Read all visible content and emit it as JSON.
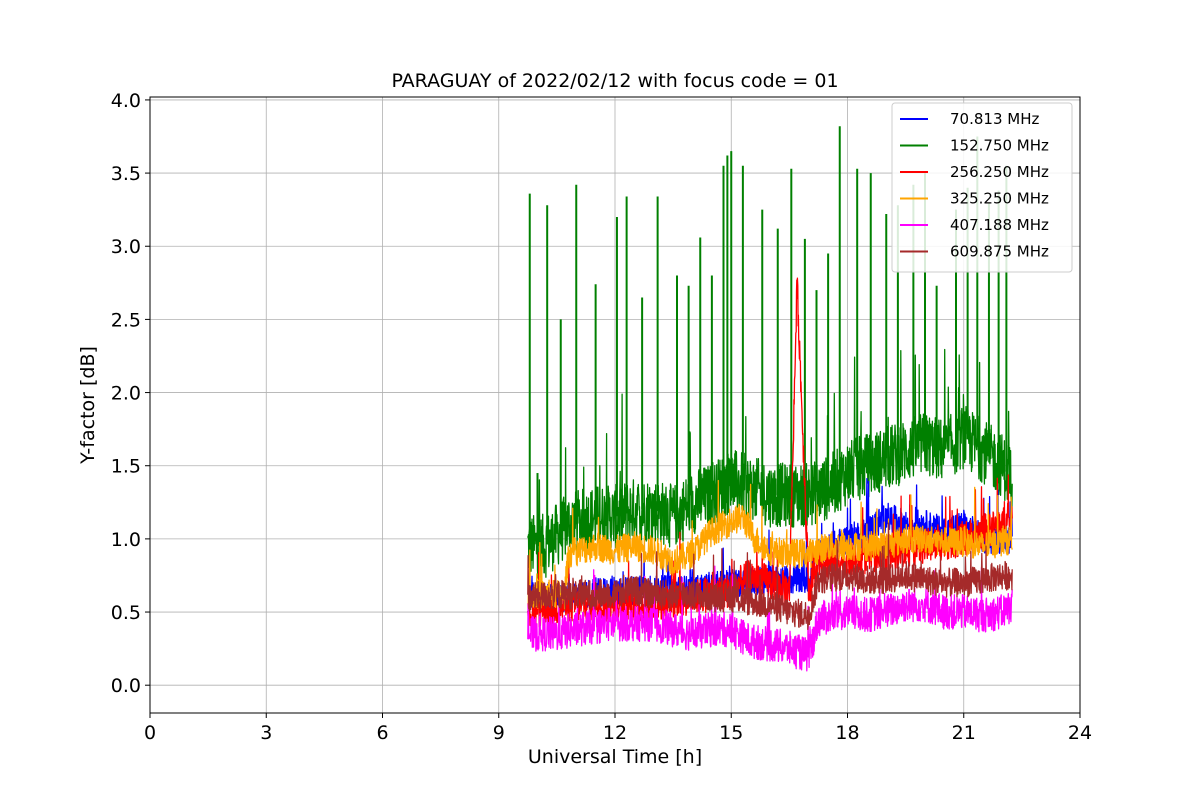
{
  "chart_data": {
    "type": "line",
    "title": "PARAGUAY of 2022/02/12 with focus code = 01",
    "xlabel": "Universal Time [h]",
    "ylabel": "Y-factor [dB]",
    "xlim": [
      0,
      24
    ],
    "ylim": [
      -0.19,
      4.02
    ],
    "xticks": [
      0,
      3,
      6,
      9,
      12,
      15,
      18,
      21,
      24
    ],
    "xtick_labels": [
      "0",
      "3",
      "6",
      "9",
      "12",
      "15",
      "18",
      "21",
      "24"
    ],
    "yticks": [
      0.0,
      0.5,
      1.0,
      1.5,
      2.0,
      2.5,
      3.0,
      3.5,
      4.0
    ],
    "ytick_labels": [
      "0.0",
      "0.5",
      "1.0",
      "1.5",
      "2.0",
      "2.5",
      "3.0",
      "3.5",
      "4.0"
    ],
    "grid": true,
    "legend_position": "top-right",
    "data_range_x": [
      9.75,
      22.25
    ],
    "series": [
      {
        "name": " 70.813 MHz",
        "color": "#0000ff",
        "x": [
          9.75,
          11,
          12,
          13,
          14,
          15,
          16,
          17,
          17.25,
          18,
          18.5,
          19,
          19.5,
          20,
          20.5,
          21,
          21.5,
          22,
          22.25
        ],
        "y": [
          0.6,
          0.6,
          0.65,
          0.65,
          0.65,
          0.7,
          0.72,
          0.72,
          0.9,
          1.0,
          1.05,
          1.15,
          1.1,
          1.1,
          1.05,
          1.1,
          1.0,
          1.0,
          1.0
        ]
      },
      {
        "name": "152.750 MHz",
        "color": "#008000",
        "x": [
          9.75,
          10.2,
          10.8,
          11.5,
          12,
          12.5,
          13,
          13.5,
          14,
          14.5,
          15,
          15.5,
          16,
          16.5,
          17,
          17.5,
          18,
          18.5,
          19,
          19.5,
          20,
          20.5,
          21,
          21.5,
          22,
          22.25
        ],
        "y": [
          0.95,
          0.95,
          1.1,
          1.15,
          1.15,
          1.2,
          1.2,
          1.15,
          1.25,
          1.3,
          1.4,
          1.35,
          1.3,
          1.3,
          1.3,
          1.35,
          1.45,
          1.5,
          1.55,
          1.6,
          1.65,
          1.6,
          1.7,
          1.6,
          1.5,
          1.4
        ],
        "peaks": [
          [
            9.8,
            3.36
          ],
          [
            10.0,
            1.45
          ],
          [
            10.25,
            3.28
          ],
          [
            10.6,
            2.5
          ],
          [
            11.0,
            3.42
          ],
          [
            11.5,
            2.74
          ],
          [
            12.05,
            3.2
          ],
          [
            12.3,
            3.34
          ],
          [
            12.7,
            2.65
          ],
          [
            13.1,
            3.34
          ],
          [
            13.6,
            2.8
          ],
          [
            13.9,
            2.73
          ],
          [
            14.2,
            3.06
          ],
          [
            14.5,
            2.8
          ],
          [
            14.8,
            3.55
          ],
          [
            14.9,
            3.62
          ],
          [
            15.0,
            3.65
          ],
          [
            15.3,
            3.55
          ],
          [
            15.8,
            3.25
          ],
          [
            16.2,
            3.12
          ],
          [
            16.55,
            3.53
          ],
          [
            16.9,
            3.05
          ],
          [
            17.2,
            2.7
          ],
          [
            17.5,
            2.95
          ],
          [
            17.8,
            3.82
          ],
          [
            18.25,
            3.53
          ],
          [
            18.6,
            3.5
          ],
          [
            19.0,
            3.22
          ],
          [
            19.3,
            3.28
          ],
          [
            19.7,
            3.42
          ],
          [
            20.0,
            3.5
          ],
          [
            20.3,
            2.73
          ],
          [
            20.8,
            3.25
          ],
          [
            21.1,
            3.4
          ],
          [
            21.35,
            3.75
          ],
          [
            21.65,
            3.3
          ],
          [
            21.9,
            3.38
          ],
          [
            22.1,
            3.55
          ]
        ]
      },
      {
        "name": "256.250 MHz",
        "color": "#ff0000",
        "x": [
          9.75,
          11,
          12,
          13,
          14,
          15,
          15.5,
          16,
          16.5,
          16.7,
          17,
          17.25,
          18,
          19,
          20,
          21,
          21.5,
          22,
          22.25
        ],
        "y": [
          0.5,
          0.55,
          0.55,
          0.55,
          0.6,
          0.65,
          0.75,
          0.7,
          0.65,
          2.75,
          0.65,
          0.85,
          0.85,
          0.9,
          0.95,
          1.0,
          1.05,
          1.1,
          1.1
        ]
      },
      {
        "name": "325.250 MHz",
        "color": "#ffa500",
        "x": [
          9.75,
          10.7,
          10.8,
          11.5,
          12,
          12.5,
          13,
          13.5,
          14,
          14.5,
          15,
          15.3,
          15.6,
          16,
          16.5,
          17,
          17.5,
          18,
          18.5,
          19,
          19.5,
          20,
          20.5,
          21,
          21.5,
          22,
          22.25
        ],
        "y": [
          0.62,
          0.62,
          0.9,
          0.95,
          0.92,
          0.95,
          0.92,
          0.85,
          0.9,
          1.05,
          1.12,
          1.15,
          1.0,
          0.92,
          0.9,
          0.9,
          0.95,
          0.95,
          0.95,
          0.95,
          1.0,
          1.0,
          0.98,
          0.98,
          0.95,
          0.98,
          1.0
        ]
      },
      {
        "name": "407.188 MHz",
        "color": "#ff00ff",
        "x": [
          9.75,
          10.5,
          11,
          11.5,
          12,
          12.5,
          13,
          13.5,
          14,
          14.5,
          15,
          15.5,
          16,
          16.5,
          17,
          17.25,
          18,
          18.5,
          19,
          19.5,
          20,
          20.5,
          21,
          21.5,
          22,
          22.25
        ],
        "y": [
          0.35,
          0.35,
          0.38,
          0.4,
          0.42,
          0.42,
          0.42,
          0.38,
          0.35,
          0.38,
          0.38,
          0.3,
          0.28,
          0.25,
          0.2,
          0.45,
          0.5,
          0.48,
          0.5,
          0.55,
          0.55,
          0.5,
          0.5,
          0.48,
          0.5,
          0.55
        ]
      },
      {
        "name": "609.875 MHz",
        "color": "#a52a2a",
        "x": [
          9.75,
          10.5,
          11,
          11.5,
          12,
          12.5,
          13,
          13.5,
          14,
          14.5,
          15,
          15.5,
          16,
          16.5,
          17,
          17.25,
          18,
          18.5,
          19,
          19.5,
          20,
          20.5,
          21,
          21.5,
          22,
          22.25
        ],
        "y": [
          0.6,
          0.62,
          0.62,
          0.62,
          0.63,
          0.65,
          0.62,
          0.62,
          0.62,
          0.6,
          0.6,
          0.57,
          0.55,
          0.5,
          0.48,
          0.72,
          0.75,
          0.72,
          0.72,
          0.75,
          0.72,
          0.7,
          0.7,
          0.72,
          0.75,
          0.75
        ]
      }
    ]
  }
}
